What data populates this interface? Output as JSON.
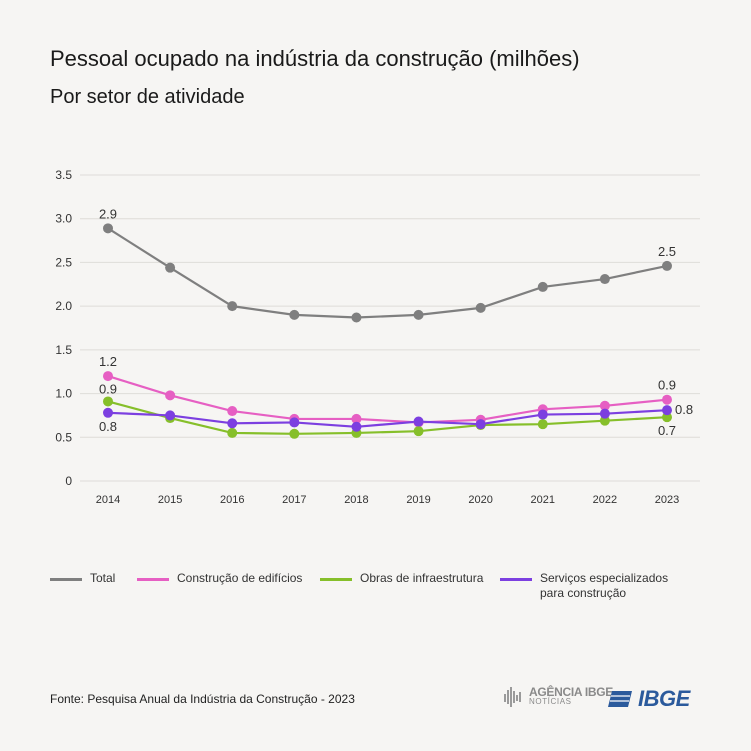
{
  "header": {
    "title": "Pessoal ocupado na indústria da construção (milhões)",
    "subtitle": "Por setor de atividade"
  },
  "chart_data": {
    "type": "line",
    "categories": [
      "2014",
      "2015",
      "2016",
      "2017",
      "2018",
      "2019",
      "2020",
      "2021",
      "2022",
      "2023"
    ],
    "ylim": [
      0,
      3.5
    ],
    "yticks": [
      "0",
      "0.5",
      "1.0",
      "1.5",
      "2.0",
      "2.5",
      "3.0",
      "3.5"
    ],
    "grid": true,
    "legend_position": "bottom",
    "series": [
      {
        "name": "Total",
        "color": "#7f7f7f",
        "values": [
          2.89,
          2.44,
          2.0,
          1.9,
          1.87,
          1.9,
          1.98,
          2.22,
          2.31,
          2.46
        ],
        "labels": {
          "first": "2.9",
          "last": "2.5"
        }
      },
      {
        "name": "Construção de edifícios",
        "color": "#e65fc3",
        "values": [
          1.2,
          0.98,
          0.8,
          0.71,
          0.71,
          0.67,
          0.7,
          0.82,
          0.86,
          0.93
        ],
        "labels": {
          "first": "1.2",
          "last": "0.9"
        }
      },
      {
        "name": "Obras de infraestrutura",
        "color": "#86bf2a",
        "values": [
          0.91,
          0.72,
          0.55,
          0.54,
          0.55,
          0.57,
          0.64,
          0.65,
          0.69,
          0.73
        ],
        "labels": {
          "first": "0.9",
          "last": "0.7"
        }
      },
      {
        "name": "Serviços especializados para construção",
        "name_lines": [
          "Serviços especializados",
          "para construção"
        ],
        "color": "#7c3fe0",
        "values": [
          0.78,
          0.75,
          0.66,
          0.67,
          0.62,
          0.68,
          0.65,
          0.76,
          0.77,
          0.81
        ],
        "labels": {
          "first": "0.8",
          "last": "0.8"
        }
      }
    ]
  },
  "footer": {
    "source": "Fonte: Pesquisa Anual da Indústria da Construção - 2023",
    "logo_agencia_top": "AGÊNCIA IBGE",
    "logo_agencia_bottom": "NOTÍCIAS",
    "logo_ibge": "IBGE"
  }
}
